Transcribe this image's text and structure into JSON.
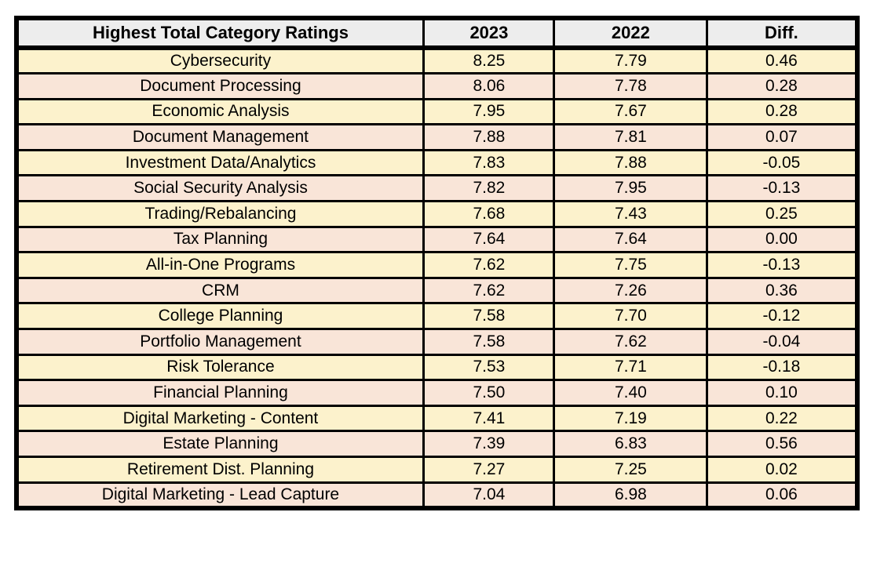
{
  "chart_data": {
    "type": "table",
    "title": "Highest Total Category Ratings",
    "columns": [
      "Highest Total Category Ratings",
      "2023",
      "2022",
      "Diff."
    ],
    "rows": [
      [
        "Cybersecurity",
        "8.25",
        "7.79",
        "0.46"
      ],
      [
        "Document Processing",
        "8.06",
        "7.78",
        "0.28"
      ],
      [
        "Economic Analysis",
        "7.95",
        "7.67",
        "0.28"
      ],
      [
        "Document Management",
        "7.88",
        "7.81",
        "0.07"
      ],
      [
        "Investment Data/Analytics",
        "7.83",
        "7.88",
        "-0.05"
      ],
      [
        "Social Security Analysis",
        "7.82",
        "7.95",
        "-0.13"
      ],
      [
        "Trading/Rebalancing",
        "7.68",
        "7.43",
        "0.25"
      ],
      [
        "Tax Planning",
        "7.64",
        "7.64",
        "0.00"
      ],
      [
        "All-in-One Programs",
        "7.62",
        "7.75",
        "-0.13"
      ],
      [
        "CRM",
        "7.62",
        "7.26",
        "0.36"
      ],
      [
        "College Planning",
        "7.58",
        "7.70",
        "-0.12"
      ],
      [
        "Portfolio Management",
        "7.58",
        "7.62",
        "-0.04"
      ],
      [
        "Risk Tolerance",
        "7.53",
        "7.71",
        "-0.18"
      ],
      [
        "Financial Planning",
        "7.50",
        "7.40",
        "0.10"
      ],
      [
        "Digital Marketing - Content",
        "7.41",
        "7.19",
        "0.22"
      ],
      [
        "Estate Planning",
        "7.39",
        "6.83",
        "0.56"
      ],
      [
        "Retirement Dist. Planning",
        "7.27",
        "7.25",
        "0.02"
      ],
      [
        "Digital Marketing - Lead Capture",
        "7.04",
        "6.98",
        "0.06"
      ]
    ],
    "layout": {
      "alternating_rows": true,
      "grid": true,
      "header_row": true
    },
    "colors": {
      "header_bg": "#EDEDED",
      "row_cream_bg": "#FCF2CC",
      "row_pink_bg": "#F9E5D8",
      "border": "#000000",
      "text": "#000000"
    }
  }
}
